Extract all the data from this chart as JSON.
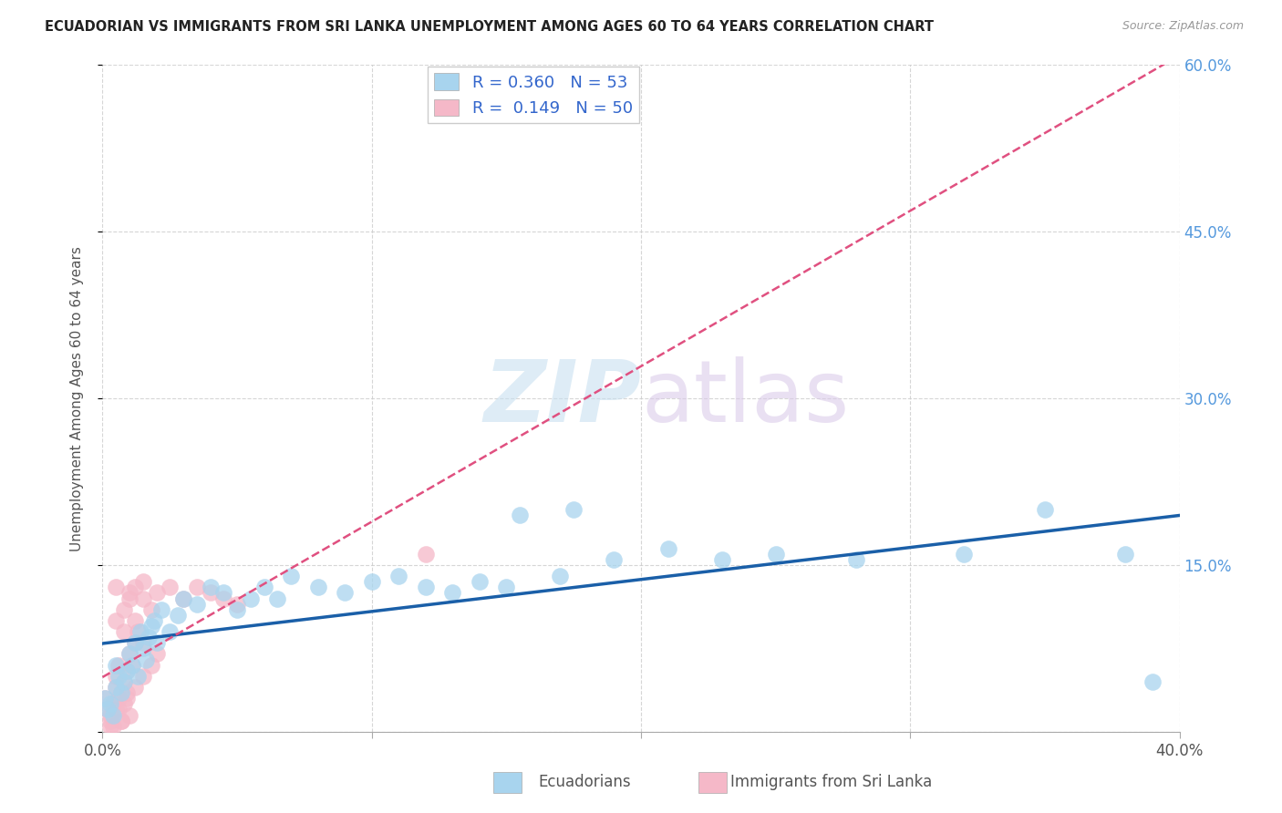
{
  "title": "ECUADORIAN VS IMMIGRANTS FROM SRI LANKA UNEMPLOYMENT AMONG AGES 60 TO 64 YEARS CORRELATION CHART",
  "source": "Source: ZipAtlas.com",
  "ylabel": "Unemployment Among Ages 60 to 64 years",
  "xlim": [
    0.0,
    0.4
  ],
  "ylim": [
    0.0,
    0.6
  ],
  "xticks": [
    0.0,
    0.1,
    0.2,
    0.3,
    0.4
  ],
  "xtick_labels": [
    "0.0%",
    "",
    "",
    "",
    "40.0%"
  ],
  "yticks": [
    0.0,
    0.15,
    0.3,
    0.45,
    0.6
  ],
  "right_ytick_labels": [
    "",
    "15.0%",
    "30.0%",
    "45.0%",
    "60.0%"
  ],
  "blue_R": 0.36,
  "blue_N": 53,
  "pink_R": 0.149,
  "pink_N": 50,
  "blue_color": "#a8d4ee",
  "pink_color": "#f5b8c8",
  "blue_line_color": "#1a5fa8",
  "pink_line_color": "#e05080",
  "watermark_zip": "ZIP",
  "watermark_atlas": "atlas",
  "blue_scatter_x": [
    0.001,
    0.002,
    0.003,
    0.004,
    0.005,
    0.005,
    0.006,
    0.007,
    0.008,
    0.009,
    0.01,
    0.011,
    0.012,
    0.013,
    0.014,
    0.015,
    0.016,
    0.017,
    0.018,
    0.019,
    0.02,
    0.022,
    0.025,
    0.028,
    0.03,
    0.035,
    0.04,
    0.045,
    0.05,
    0.055,
    0.06,
    0.065,
    0.07,
    0.08,
    0.09,
    0.1,
    0.11,
    0.12,
    0.13,
    0.14,
    0.15,
    0.17,
    0.19,
    0.21,
    0.23,
    0.25,
    0.28,
    0.32,
    0.35,
    0.38,
    0.39,
    0.155,
    0.175
  ],
  "blue_scatter_y": [
    0.03,
    0.02,
    0.025,
    0.015,
    0.04,
    0.06,
    0.05,
    0.035,
    0.045,
    0.055,
    0.07,
    0.06,
    0.08,
    0.05,
    0.09,
    0.075,
    0.065,
    0.085,
    0.095,
    0.1,
    0.08,
    0.11,
    0.09,
    0.105,
    0.12,
    0.115,
    0.13,
    0.125,
    0.11,
    0.12,
    0.13,
    0.12,
    0.14,
    0.13,
    0.125,
    0.135,
    0.14,
    0.13,
    0.125,
    0.135,
    0.13,
    0.14,
    0.155,
    0.165,
    0.155,
    0.16,
    0.155,
    0.16,
    0.2,
    0.16,
    0.045,
    0.195,
    0.2
  ],
  "pink_scatter_x": [
    0.001,
    0.002,
    0.003,
    0.004,
    0.005,
    0.005,
    0.006,
    0.007,
    0.008,
    0.009,
    0.01,
    0.011,
    0.012,
    0.013,
    0.005,
    0.008,
    0.01,
    0.012,
    0.015,
    0.018,
    0.003,
    0.006,
    0.009,
    0.012,
    0.015,
    0.018,
    0.02,
    0.015,
    0.008,
    0.012,
    0.005,
    0.01,
    0.015,
    0.02,
    0.025,
    0.03,
    0.035,
    0.04,
    0.045,
    0.05,
    0.004,
    0.007,
    0.01,
    0.005,
    0.008,
    0.006,
    0.009,
    0.003,
    0.007,
    0.12
  ],
  "pink_scatter_y": [
    0.03,
    0.02,
    0.015,
    0.025,
    0.05,
    0.04,
    0.06,
    0.035,
    0.045,
    0.055,
    0.07,
    0.06,
    0.08,
    0.09,
    0.1,
    0.11,
    0.12,
    0.13,
    0.12,
    0.11,
    0.01,
    0.02,
    0.03,
    0.04,
    0.05,
    0.06,
    0.07,
    0.08,
    0.09,
    0.1,
    0.13,
    0.125,
    0.135,
    0.125,
    0.13,
    0.12,
    0.13,
    0.125,
    0.12,
    0.115,
    0.005,
    0.01,
    0.015,
    0.02,
    0.025,
    0.03,
    0.035,
    0.005,
    0.01,
    0.16
  ]
}
